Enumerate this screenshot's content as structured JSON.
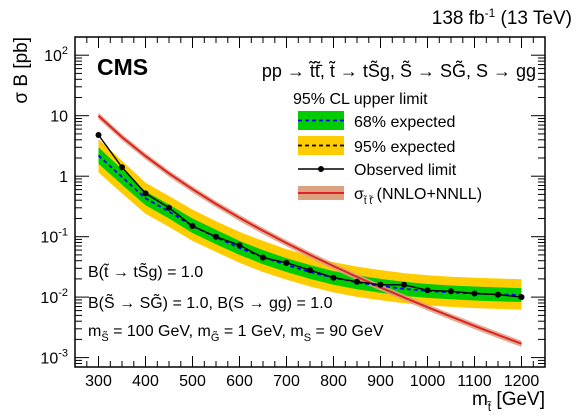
{
  "chart_data": {
    "type": "line",
    "lumi_label": "138 fb",
    "lumi_sup": "-1",
    "lumi_energy": " (13 TeV)",
    "experiment_label": "CMS",
    "process_label": "pp → t̃t̃̄, t̃ → tS̃g, S̃ → SG̃, S → gg",
    "legend_header": "95% CL upper limit",
    "xlabel_main": "m",
    "xlabel_sub": "t̃",
    "xlabel_unit": " [GeV]",
    "ylabel": "σ B [pb]",
    "xlim": [
      250,
      1250
    ],
    "ylim": [
      0.0007,
      200
    ],
    "log_y": true,
    "x_ticks": [
      300,
      400,
      500,
      600,
      700,
      800,
      900,
      1000,
      1100,
      1200
    ],
    "y_ticks": [
      {
        "value": 0.001,
        "base": "10",
        "exp": "-3"
      },
      {
        "value": 0.01,
        "base": "10",
        "exp": "-2"
      },
      {
        "value": 0.1,
        "base": "10",
        "exp": "-1"
      },
      {
        "value": 1,
        "label": "1"
      },
      {
        "value": 10,
        "label": "10"
      },
      {
        "value": 100,
        "base": "10",
        "exp": "2"
      }
    ],
    "annotations": [
      {
        "text": "B(t̃ → tS̃g) = 1.0"
      },
      {
        "text": "B(S̃ → SG̃) = 1.0, B(S → gg) = 1.0"
      },
      {
        "text": "m_S̃ = 100 GeV, m_G̃ = 1 GeV, m_S = 90 GeV"
      }
    ],
    "annotation_parts": {
      "line3": [
        {
          "t": "m"
        },
        {
          "t": "S̃",
          "sub": true
        },
        {
          "t": " = 100 GeV, m"
        },
        {
          "t": "G̃",
          "sub": true
        },
        {
          "t": " = 1 GeV, m"
        },
        {
          "t": "S",
          "sub": true
        },
        {
          "t": " = 90 GeV"
        }
      ]
    },
    "x": [
      300,
      350,
      400,
      450,
      500,
      550,
      600,
      650,
      700,
      750,
      800,
      850,
      900,
      950,
      1000,
      1050,
      1100,
      1150,
      1200
    ],
    "series": [
      {
        "name": "68% expected",
        "role": "band68",
        "color": "#00cc00",
        "low": [
          1.6,
          0.72,
          0.33,
          0.2,
          0.115,
          0.075,
          0.05,
          0.035,
          0.026,
          0.02,
          0.016,
          0.0135,
          0.0118,
          0.0105,
          0.0097,
          0.0092,
          0.0088,
          0.0085,
          0.0083
        ],
        "high": [
          3.0,
          1.3,
          0.56,
          0.34,
          0.2,
          0.13,
          0.085,
          0.06,
          0.044,
          0.034,
          0.027,
          0.023,
          0.02,
          0.018,
          0.0165,
          0.0156,
          0.015,
          0.0145,
          0.0141
        ]
      },
      {
        "name": "95% expected",
        "role": "band95",
        "color": "#ffcc00",
        "low": [
          1.15,
          0.52,
          0.24,
          0.145,
          0.085,
          0.056,
          0.037,
          0.026,
          0.0195,
          0.015,
          0.012,
          0.0101,
          0.0089,
          0.0079,
          0.0073,
          0.0069,
          0.0066,
          0.0064,
          0.0062
        ],
        "high": [
          4.1,
          1.8,
          0.78,
          0.47,
          0.28,
          0.18,
          0.12,
          0.085,
          0.062,
          0.048,
          0.038,
          0.032,
          0.028,
          0.025,
          0.023,
          0.0218,
          0.021,
          0.0203,
          0.0197
        ]
      },
      {
        "name": "expected",
        "role": "expected",
        "color": "#0000ff",
        "values": [
          2.2,
          0.97,
          0.43,
          0.26,
          0.15,
          0.098,
          0.065,
          0.046,
          0.034,
          0.026,
          0.021,
          0.0176,
          0.0154,
          0.0137,
          0.0127,
          0.012,
          0.0115,
          0.0111,
          0.0108
        ]
      },
      {
        "name": "Observed limit",
        "role": "observed",
        "color": "#000000",
        "values": [
          4.8,
          1.4,
          0.52,
          0.3,
          0.15,
          0.1,
          0.072,
          0.045,
          0.037,
          0.028,
          0.021,
          0.018,
          0.016,
          0.016,
          0.013,
          0.0125,
          0.0115,
          0.011,
          0.01
        ]
      },
      {
        "name": "(NNLO+NNLL)",
        "role": "theory",
        "symbol": "σ",
        "symbol_sub": "t̃ t̃̄",
        "color": "#dd2222",
        "band_color": "#dda080",
        "values": [
          10.0,
          4.43,
          2.15,
          1.11,
          0.609,
          0.347,
          0.205,
          0.125,
          0.0783,
          0.05,
          0.0326,
          0.0216,
          0.0145,
          0.00991,
          0.00683,
          0.00476,
          0.00335,
          0.00238,
          0.0017
        ],
        "rel_unc": 0.12
      }
    ]
  }
}
